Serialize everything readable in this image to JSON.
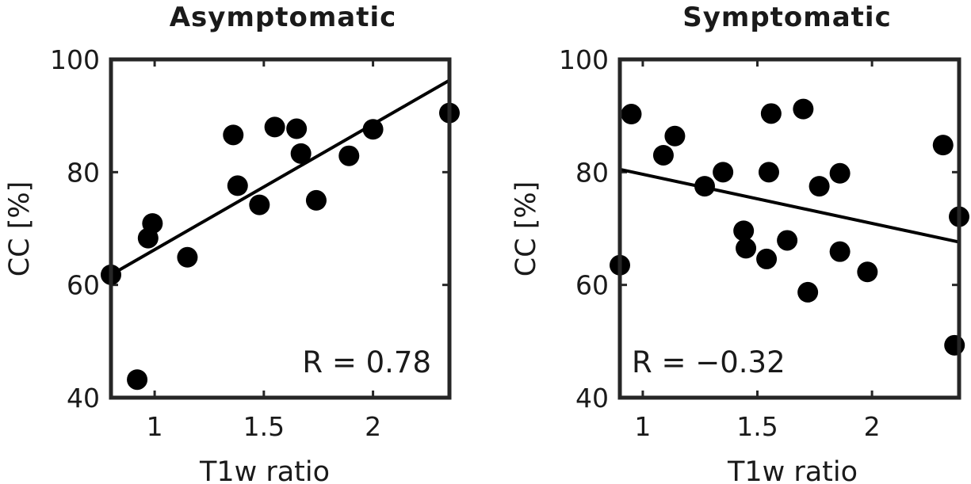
{
  "chart_data": [
    {
      "type": "scatter",
      "title": "Asymptomatic",
      "xlabel": "T1w ratio",
      "ylabel": "CC [%]",
      "xlim": [
        0.8,
        2.35
      ],
      "ylim": [
        40,
        100
      ],
      "xticks": [
        1,
        1.5,
        2
      ],
      "xtick_labels": [
        "1",
        "1.5",
        "2"
      ],
      "yticks": [
        40,
        60,
        80,
        100
      ],
      "ytick_labels": [
        "40",
        "60",
        "80",
        "100"
      ],
      "points": {
        "x": [
          0.8,
          0.92,
          0.97,
          0.99,
          1.15,
          1.36,
          1.38,
          1.48,
          1.55,
          1.65,
          1.67,
          1.74,
          1.89,
          2.0,
          2.35
        ],
        "y": [
          61.8,
          43.2,
          68.3,
          70.9,
          64.9,
          86.6,
          77.6,
          74.2,
          88.0,
          87.7,
          83.3,
          75.0,
          82.9,
          87.6,
          90.5
        ]
      },
      "fit_line": {
        "x": [
          0.8,
          2.35
        ],
        "y": [
          61.8,
          96.3
        ]
      },
      "annotation": "R = 0.78",
      "annotation_position": "bottom-right",
      "grid": false
    },
    {
      "type": "scatter",
      "title": "Symptomatic",
      "xlabel": "T1w ratio",
      "ylabel": "CC [%]",
      "xlim": [
        0.9,
        2.38
      ],
      "ylim": [
        40,
        100
      ],
      "xticks": [
        1,
        1.5,
        2
      ],
      "xtick_labels": [
        "1",
        "1.5",
        "2"
      ],
      "yticks": [
        40,
        60,
        80,
        100
      ],
      "ytick_labels": [
        "40",
        "60",
        "80",
        "100"
      ],
      "points": {
        "x": [
          0.9,
          0.95,
          1.09,
          1.14,
          1.27,
          1.35,
          1.44,
          1.45,
          1.54,
          1.55,
          1.56,
          1.63,
          1.7,
          1.72,
          1.77,
          1.86,
          1.86,
          1.98,
          2.31,
          2.36,
          2.38
        ],
        "y": [
          63.5,
          90.3,
          83.0,
          86.4,
          77.5,
          80.0,
          69.6,
          66.5,
          64.6,
          80.0,
          90.4,
          67.9,
          91.2,
          58.7,
          77.5,
          65.9,
          79.8,
          62.3,
          84.8,
          49.3,
          72.1
        ]
      },
      "fit_line": {
        "x": [
          0.9,
          2.38
        ],
        "y": [
          80.5,
          67.6
        ]
      },
      "annotation": "R = −0.32",
      "annotation_position": "bottom-left",
      "grid": false
    }
  ]
}
